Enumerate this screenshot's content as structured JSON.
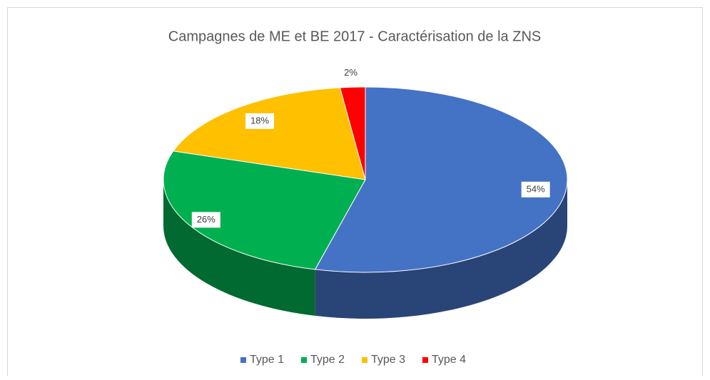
{
  "chart_data": {
    "type": "pie3d",
    "title": "Campagnes de ME et BE 2017 - Caractérisation de la ZNS",
    "categories": [
      "Type 1",
      "Type 2",
      "Type 3",
      "Type 4"
    ],
    "values": [
      54,
      26,
      18,
      2
    ],
    "value_labels": [
      "54%",
      "26%",
      "18%",
      "2%"
    ],
    "colors": [
      "#4472c4",
      "#00b050",
      "#ffc000",
      "#ff0000"
    ],
    "legend": "bottom"
  }
}
